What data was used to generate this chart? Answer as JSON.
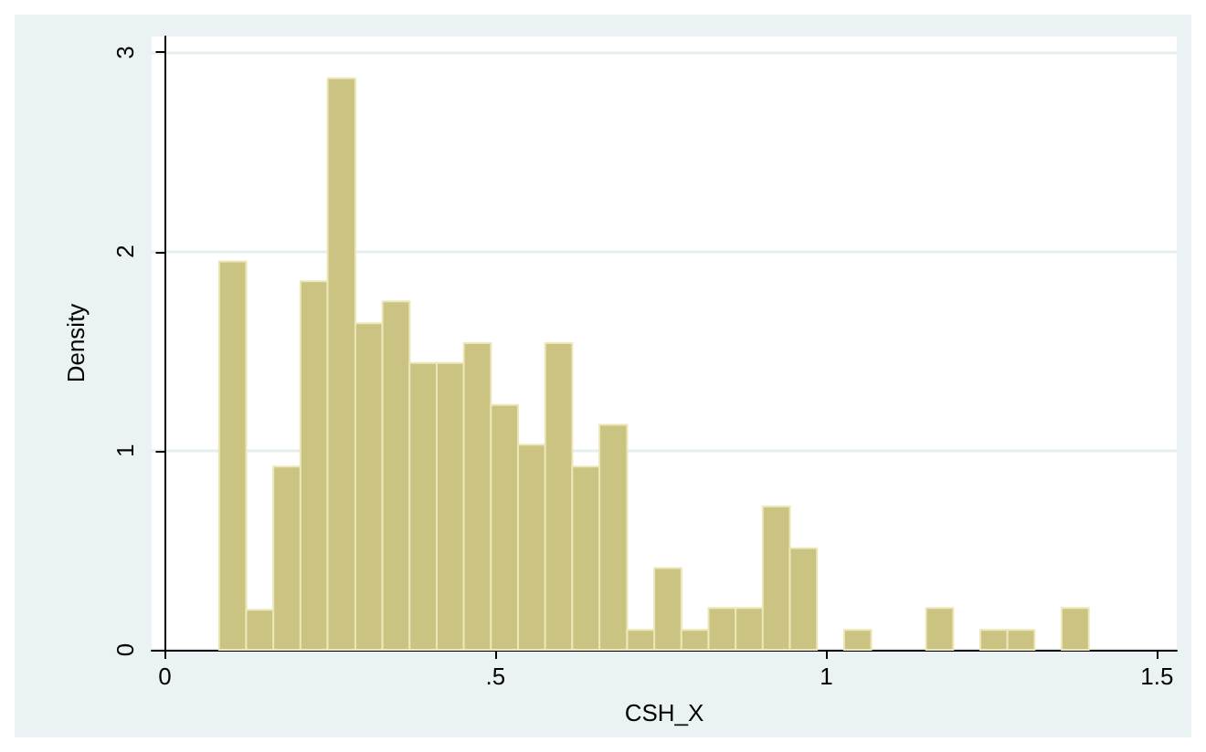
{
  "chart_data": {
    "type": "histogram",
    "xlabel": "CSH_X",
    "ylabel": "Density",
    "color": "#cbc382",
    "bins": [
      0.082,
      0.123,
      0.164,
      0.205,
      0.246,
      0.288,
      0.329,
      0.37,
      0.411,
      0.452,
      0.493,
      0.534,
      0.575,
      0.616,
      0.657,
      0.699,
      0.74,
      0.781,
      0.822,
      0.863,
      0.904,
      0.945,
      0.986,
      1.027,
      1.068,
      1.151,
      1.192,
      1.233,
      1.274,
      1.315,
      1.356,
      1.397
    ],
    "values": [
      1.95,
      0.2,
      0.92,
      1.85,
      2.87,
      1.64,
      1.75,
      1.44,
      1.44,
      1.54,
      1.23,
      1.03,
      1.54,
      0.92,
      1.13,
      0.1,
      0.41,
      0.1,
      0.21,
      0.21,
      0.72,
      0.51,
      0,
      0.1,
      0,
      0.21,
      0,
      0.1,
      0.1,
      0,
      0.21
    ],
    "xlim": [
      -0.02,
      1.53
    ],
    "xticks": [
      0,
      {
        "value": 0.5,
        "label": ".5"
      },
      1,
      1.5
    ],
    "ylim": [
      0,
      3.08
    ],
    "yticks": [
      0,
      1,
      2,
      3
    ],
    "grid": "y"
  }
}
